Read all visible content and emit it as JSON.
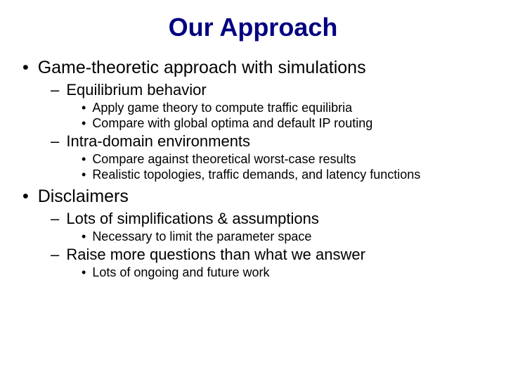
{
  "title": "Our Approach",
  "items": {
    "a": "Game-theoretic approach with simulations",
    "a1": "Equilibrium behavior",
    "a1a": "Apply game theory to compute traffic equilibria",
    "a1b": "Compare with global optima and default IP routing",
    "a2": "Intra-domain environments",
    "a2a": "Compare against theoretical worst-case results",
    "a2b": "Realistic topologies, traffic demands, and latency functions",
    "b": "Disclaimers",
    "b1": "Lots of simplifications & assumptions",
    "b1a": "Necessary to limit the parameter space",
    "b2": "Raise more questions than what we answer",
    "b2a": "Lots of ongoing and future work"
  },
  "colors": {
    "title": "#000080",
    "body": "#000000",
    "background": "#ffffff"
  },
  "typography": {
    "title_fontsize": 36,
    "l1_fontsize": 25,
    "l2_fontsize": 22,
    "l3_fontsize": 18,
    "font_family": "Comic Sans MS"
  }
}
